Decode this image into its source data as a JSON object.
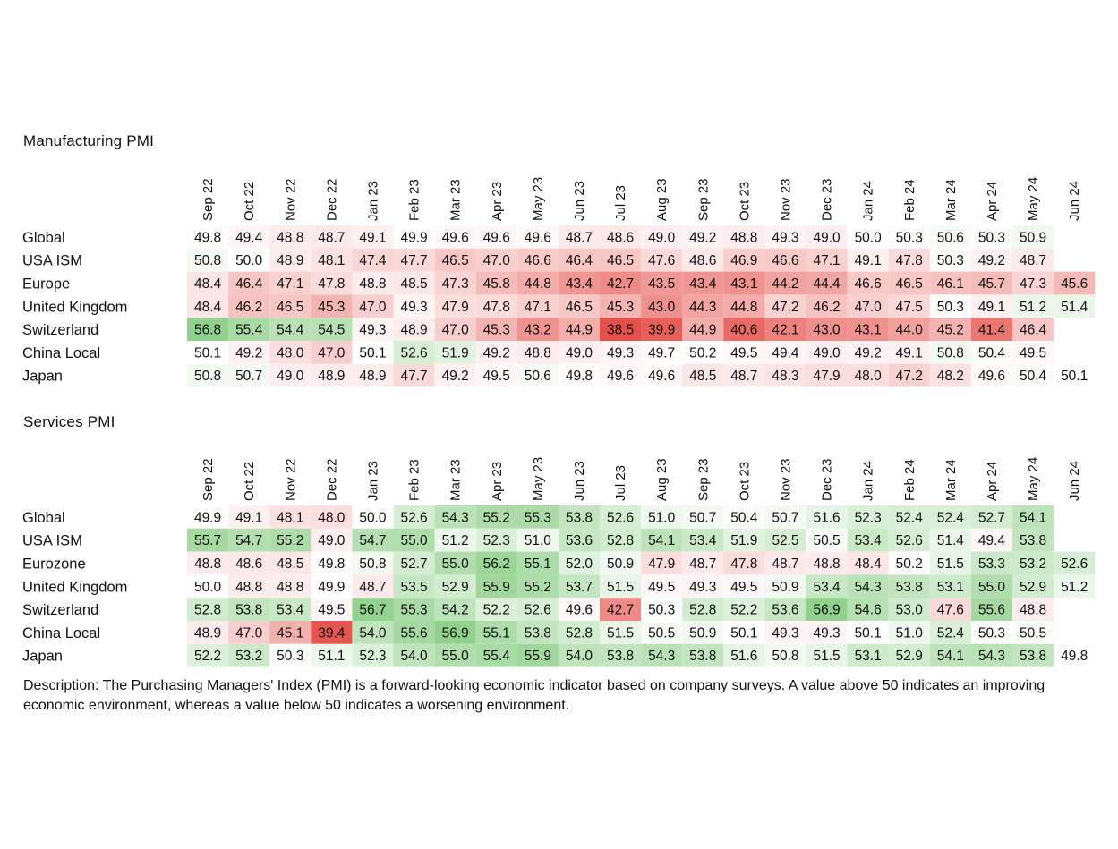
{
  "chart_data": [
    {
      "type": "heatmap",
      "title": "Manufacturing PMI",
      "columns": [
        "Sep 22",
        "Oct 22",
        "Nov 22",
        "Dec 22",
        "Jan 23",
        "Feb 23",
        "Mar 23",
        "Apr 23",
        "May 23",
        "Jun 23",
        "Jul 23",
        "Aug 23",
        "Sep 23",
        "Oct 23",
        "Nov 23",
        "Dec 23",
        "Jan 24",
        "Feb 24",
        "Mar 24",
        "Apr 24",
        "May 24",
        "Jun 24"
      ],
      "rows": [
        {
          "name": "Global",
          "values": [
            49.8,
            49.4,
            48.8,
            48.7,
            49.1,
            49.9,
            49.6,
            49.6,
            49.6,
            48.7,
            48.6,
            49.0,
            49.2,
            48.8,
            49.3,
            49.0,
            50.0,
            50.3,
            50.6,
            50.3,
            50.9,
            null
          ]
        },
        {
          "name": "USA ISM",
          "values": [
            50.8,
            50.0,
            48.9,
            48.1,
            47.4,
            47.7,
            46.5,
            47.0,
            46.6,
            46.4,
            46.5,
            47.6,
            48.6,
            46.9,
            46.6,
            47.1,
            49.1,
            47.8,
            50.3,
            49.2,
            48.7,
            null
          ]
        },
        {
          "name": "Europe",
          "values": [
            48.4,
            46.4,
            47.1,
            47.8,
            48.8,
            48.5,
            47.3,
            45.8,
            44.8,
            43.4,
            42.7,
            43.5,
            43.4,
            43.1,
            44.2,
            44.4,
            46.6,
            46.5,
            46.1,
            45.7,
            47.3,
            45.6
          ]
        },
        {
          "name": "United Kingdom",
          "values": [
            48.4,
            46.2,
            46.5,
            45.3,
            47.0,
            49.3,
            47.9,
            47.8,
            47.1,
            46.5,
            45.3,
            43.0,
            44.3,
            44.8,
            47.2,
            46.2,
            47.0,
            47.5,
            50.3,
            49.1,
            51.2,
            51.4
          ]
        },
        {
          "name": "Switzerland",
          "values": [
            56.8,
            55.4,
            54.4,
            54.5,
            49.3,
            48.9,
            47.0,
            45.3,
            43.2,
            44.9,
            38.5,
            39.9,
            44.9,
            40.6,
            42.1,
            43.0,
            43.1,
            44.0,
            45.2,
            41.4,
            46.4,
            null
          ]
        },
        {
          "name": "China Local",
          "values": [
            50.1,
            49.2,
            48.0,
            47.0,
            50.1,
            52.6,
            51.9,
            49.2,
            48.8,
            49.0,
            49.3,
            49.7,
            50.2,
            49.5,
            49.4,
            49.0,
            49.2,
            49.1,
            50.8,
            50.4,
            49.5,
            null
          ]
        },
        {
          "name": "Japan",
          "values": [
            50.8,
            50.7,
            49.0,
            48.9,
            48.9,
            47.7,
            49.2,
            49.5,
            50.6,
            49.8,
            49.6,
            49.6,
            48.5,
            48.7,
            48.3,
            47.9,
            48.0,
            47.2,
            48.2,
            49.6,
            50.4,
            50.1
          ]
        }
      ]
    },
    {
      "type": "heatmap",
      "title": "Services PMI",
      "columns": [
        "Sep 22",
        "Oct 22",
        "Nov 22",
        "Dec 22",
        "Jan 23",
        "Feb 23",
        "Mar 23",
        "Apr 23",
        "May 23",
        "Jun 23",
        "Jul 23",
        "Aug 23",
        "Sep 23",
        "Oct 23",
        "Nov 23",
        "Dec 23",
        "Jan 24",
        "Feb 24",
        "Mar 24",
        "Apr 24",
        "May 24",
        "Jun 24"
      ],
      "rows": [
        {
          "name": "Global",
          "values": [
            49.9,
            49.1,
            48.1,
            48.0,
            50.0,
            52.6,
            54.3,
            55.2,
            55.3,
            53.8,
            52.6,
            51.0,
            50.7,
            50.4,
            50.7,
            51.6,
            52.3,
            52.4,
            52.4,
            52.7,
            54.1,
            null
          ]
        },
        {
          "name": "USA ISM",
          "values": [
            55.7,
            54.7,
            55.2,
            49.0,
            54.7,
            55.0,
            51.2,
            52.3,
            51.0,
            53.6,
            52.8,
            54.1,
            53.4,
            51.9,
            52.5,
            50.5,
            53.4,
            52.6,
            51.4,
            49.4,
            53.8,
            null
          ]
        },
        {
          "name": "Eurozone",
          "values": [
            48.8,
            48.6,
            48.5,
            49.8,
            50.8,
            52.7,
            55.0,
            56.2,
            55.1,
            52.0,
            50.9,
            47.9,
            48.7,
            47.8,
            48.7,
            48.8,
            48.4,
            50.2,
            51.5,
            53.3,
            53.2,
            52.6
          ]
        },
        {
          "name": "United Kingdom",
          "values": [
            50.0,
            48.8,
            48.8,
            49.9,
            48.7,
            53.5,
            52.9,
            55.9,
            55.2,
            53.7,
            51.5,
            49.5,
            49.3,
            49.5,
            50.9,
            53.4,
            54.3,
            53.8,
            53.1,
            55.0,
            52.9,
            51.2
          ]
        },
        {
          "name": "Switzerland",
          "values": [
            52.8,
            53.8,
            53.4,
            49.5,
            56.7,
            55.3,
            54.2,
            52.2,
            52.6,
            49.6,
            42.7,
            50.3,
            52.8,
            52.2,
            53.6,
            56.9,
            54.6,
            53.0,
            47.6,
            55.6,
            48.8,
            null
          ]
        },
        {
          "name": "China Local",
          "values": [
            48.9,
            47.0,
            45.1,
            39.4,
            54.0,
            55.6,
            56.9,
            55.1,
            53.8,
            52.8,
            51.5,
            50.5,
            50.9,
            50.1,
            49.3,
            49.3,
            50.1,
            51.0,
            52.4,
            50.3,
            50.5,
            null
          ]
        },
        {
          "name": "Japan",
          "values": [
            52.2,
            53.2,
            50.3,
            51.1,
            52.3,
            54.0,
            55.0,
            55.4,
            55.9,
            54.0,
            53.8,
            54.3,
            53.8,
            51.6,
            50.8,
            51.5,
            53.1,
            52.9,
            54.1,
            54.3,
            53.8,
            49.8
          ]
        }
      ]
    }
  ],
  "colors": {
    "neutral": "#ffffff",
    "negative_max": "#e5504a",
    "positive_max": "#8fd08a"
  },
  "description": "Description: The Purchasing Managers' Index (PMI) is a forward-looking economic indicator based on company surveys. A value above 50 indicates an improving economic environment, whereas a value below 50 indicates a worsening environment."
}
